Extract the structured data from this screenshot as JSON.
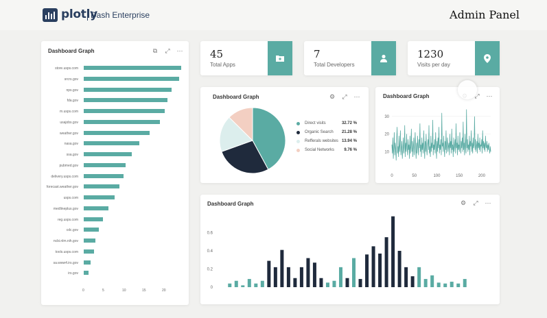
{
  "header": {
    "logo_text": "plotly",
    "logo_sub": "Dash Enterprise",
    "page_title": "Admin Panel"
  },
  "colors": {
    "teal": "#5aaba3",
    "navy": "#1f2a3c",
    "light_teal": "#dceeed",
    "peach": "#f3cfc2"
  },
  "stats": [
    {
      "value": "45",
      "label": "Total Apps",
      "icon": "folder-plus-icon"
    },
    {
      "value": "7",
      "label": "Total Developers",
      "icon": "user-icon"
    },
    {
      "value": "1230",
      "label": "Visits per day",
      "icon": "location-pin-icon"
    }
  ],
  "cards": {
    "hbar_title": "Dashboard Graph",
    "pie_title": "Dashboard Graph",
    "line_title": "Dashboard Graph",
    "vbar_title": "Dashboard Graph"
  },
  "chart_data": [
    {
      "type": "bar",
      "orientation": "horizontal",
      "categories": [
        "store.usps.com",
        "srcrs.gov",
        "nps.gov",
        "fda.gov",
        "m.usps.com",
        "usajobs.gov",
        "weather.gov",
        "nasa.gov",
        "ssa.gov",
        "pubmed.gov",
        "delivery.usps.com",
        "forecast.weather.gov",
        "usps.com",
        "medlineplus.gov",
        "reg.usps.com",
        "cdc.gov",
        "ncbi.nlm.nih.gov",
        "tools.usps.com",
        "sa.www4.irs.gov",
        "irs.gov"
      ],
      "values": [
        24.5,
        24,
        22,
        21,
        20.3,
        19.2,
        16.5,
        14,
        12,
        10.5,
        10,
        9,
        7.7,
        6.2,
        4.8,
        3.8,
        3,
        2.6,
        1.8,
        1.2
      ],
      "x_ticks": [
        "0",
        "5",
        "10",
        "15",
        "20"
      ],
      "xlim": [
        0,
        25
      ]
    },
    {
      "type": "pie",
      "labels": [
        "Direct visits",
        "Organic Search",
        "Refferals websites",
        "Social Networks"
      ],
      "values": [
        32.72,
        21.28,
        13.94,
        9.76
      ],
      "display": [
        "32.72 %",
        "21.28 %",
        "13.94 %",
        "9.76 %"
      ],
      "colors": [
        "#5aaba3",
        "#1f2a3c",
        "#dceeed",
        "#f3cfc2"
      ]
    },
    {
      "type": "line",
      "x_range": [
        0,
        220
      ],
      "ylim": [
        0,
        35
      ],
      "x_ticks": [
        "0",
        "50",
        "100",
        "150",
        "200"
      ],
      "y_ticks": [
        "10",
        "20",
        "30"
      ],
      "y": [
        14,
        9,
        18,
        6,
        12,
        21,
        8,
        15,
        11,
        5,
        17,
        24,
        9,
        13,
        7,
        19,
        10,
        14,
        22,
        8,
        12,
        16,
        6,
        11,
        18,
        9,
        13,
        25,
        7,
        15,
        10,
        20,
        12,
        8,
        17,
        11,
        14,
        6,
        19,
        9,
        13,
        23,
        10,
        16,
        7,
        12,
        18,
        8,
        14,
        21,
        11,
        6,
        15,
        9,
        19,
        13,
        8,
        17,
        12,
        26,
        10,
        14,
        7,
        18,
        11,
        15,
        9,
        22,
        13,
        6,
        16,
        10,
        20,
        12,
        8,
        14,
        17,
        11,
        25,
        9,
        13,
        7,
        19,
        10,
        15,
        12,
        28,
        8,
        14,
        11,
        17,
        9,
        21,
        13,
        6,
        16,
        10,
        18,
        12,
        24,
        9,
        14,
        11,
        17,
        8,
        32,
        13,
        15,
        10,
        19,
        12,
        7,
        16,
        11,
        22,
        9,
        14,
        18,
        10,
        13,
        15,
        8,
        20,
        12,
        16,
        9,
        23,
        11,
        14,
        7,
        18,
        10,
        13,
        17,
        9,
        26,
        12,
        15,
        8,
        19,
        11,
        14,
        10,
        21,
        13,
        9,
        16,
        12,
        18,
        10,
        27,
        11,
        15,
        8,
        20,
        13,
        9,
        34,
        12,
        17,
        10,
        14,
        11,
        19,
        8,
        16,
        13,
        22,
        10,
        15,
        9,
        18,
        12,
        14,
        30,
        11,
        17,
        10,
        13,
        16,
        9,
        20,
        12,
        15,
        11,
        18,
        10,
        14,
        13,
        17,
        9,
        22,
        12,
        16,
        11,
        15,
        10,
        19,
        13,
        12,
        16,
        10,
        14,
        11,
        15,
        12,
        9,
        13,
        10
      ]
    },
    {
      "type": "bar",
      "orientation": "vertical",
      "ylim": [
        0,
        0.8
      ],
      "y_ticks": [
        "0",
        "0.2",
        "0.4",
        "0.6"
      ],
      "values": [
        0.04,
        0.07,
        0.02,
        0.09,
        0.04,
        0.07,
        0.29,
        0.22,
        0.41,
        0.22,
        0.1,
        0.22,
        0.32,
        0.27,
        0.1,
        0.05,
        0.07,
        0.22,
        0.1,
        0.32,
        0.09,
        0.36,
        0.45,
        0.37,
        0.55,
        0.78,
        0.4,
        0.22,
        0.12,
        0.22,
        0.09,
        0.13,
        0.05,
        0.04,
        0.06,
        0.04,
        0.09
      ],
      "colors": [
        "teal",
        "teal",
        "teal",
        "teal",
        "teal",
        "teal",
        "navy",
        "navy",
        "navy",
        "navy",
        "navy",
        "navy",
        "navy",
        "navy",
        "navy",
        "teal",
        "teal",
        "teal",
        "navy",
        "teal",
        "navy",
        "navy",
        "navy",
        "navy",
        "navy",
        "navy",
        "navy",
        "navy",
        "navy",
        "teal",
        "teal",
        "teal",
        "teal",
        "teal",
        "teal",
        "teal",
        "teal"
      ]
    }
  ]
}
